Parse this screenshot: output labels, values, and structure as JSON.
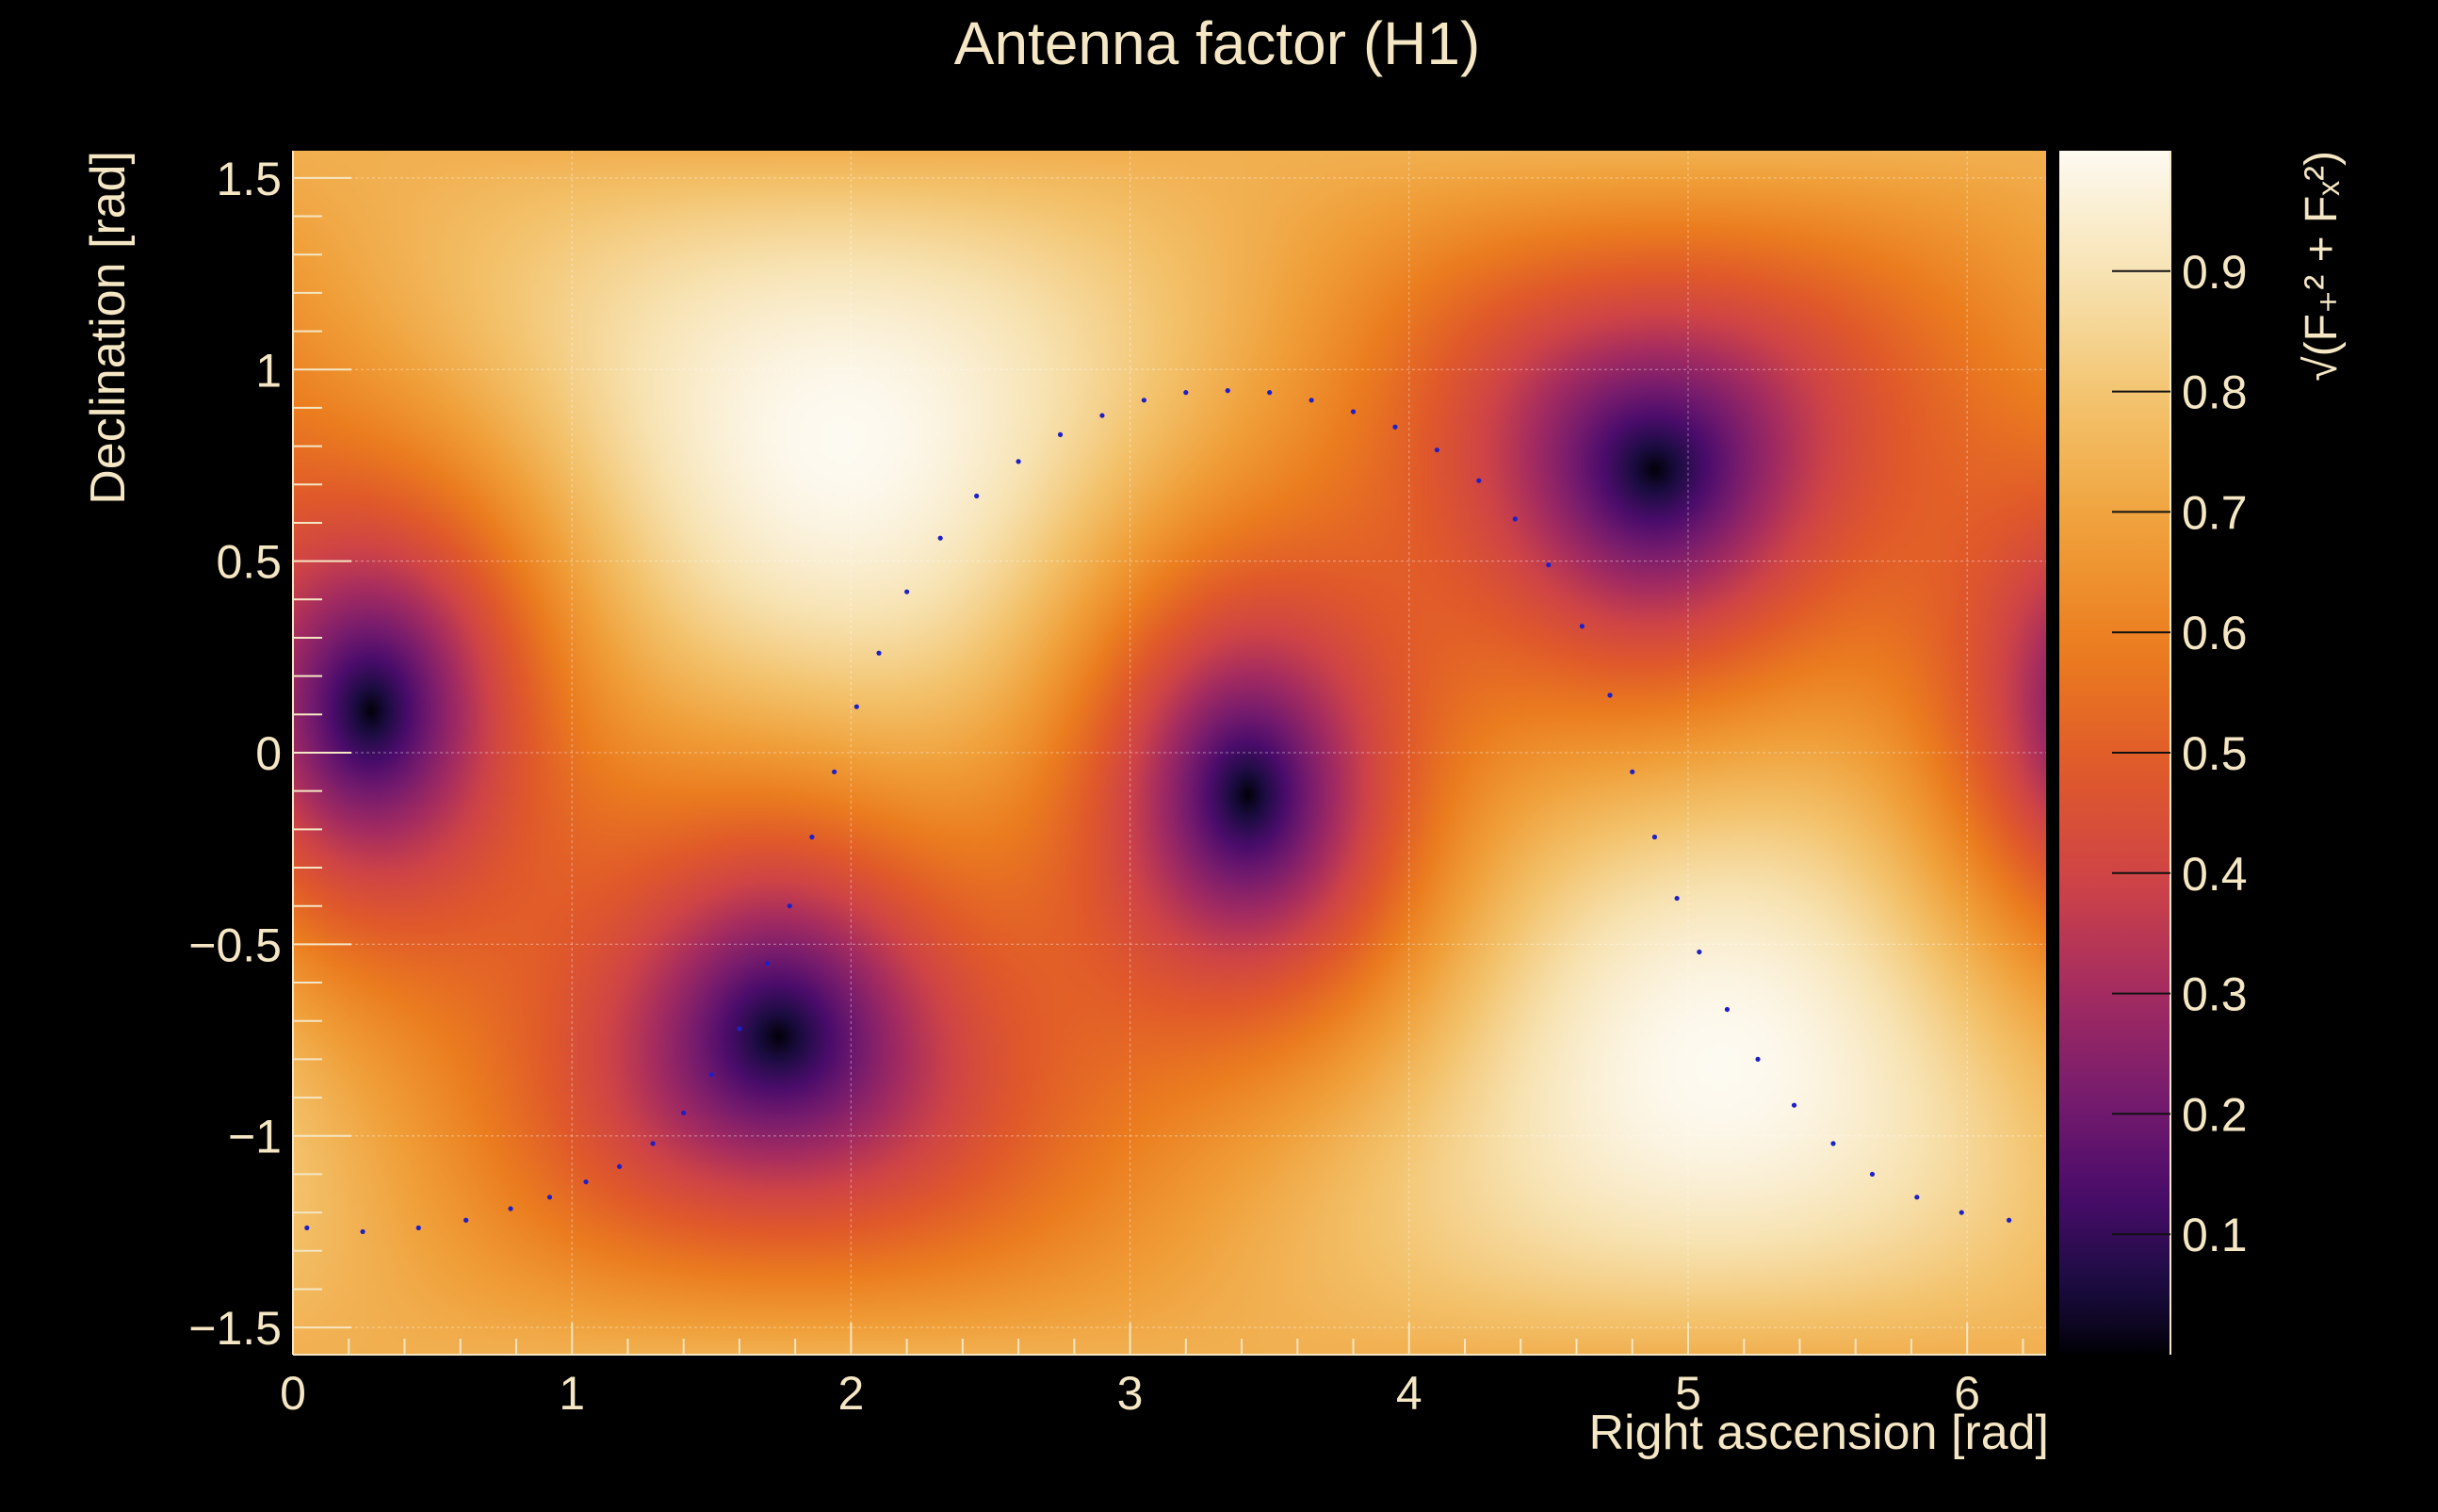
{
  "chart_data": {
    "type": "heatmap",
    "title": "Antenna factor (H1)",
    "xlabel": "Right ascension [rad]",
    "ylabel": "Declination [rad]",
    "zlabel": "√(F₊² + Fₓ²)",
    "xlim": [
      0,
      6.283
    ],
    "ylim": [
      -1.571,
      1.571
    ],
    "zlim": [
      0,
      1
    ],
    "xticks": [
      {
        "v": 0,
        "label": "0"
      },
      {
        "v": 1,
        "label": "1"
      },
      {
        "v": 2,
        "label": "2"
      },
      {
        "v": 3,
        "label": "3"
      },
      {
        "v": 4,
        "label": "4"
      },
      {
        "v": 5,
        "label": "5"
      },
      {
        "v": 6,
        "label": "6"
      }
    ],
    "yticks": [
      {
        "v": 1.5,
        "label": "1.5"
      },
      {
        "v": 1,
        "label": "1"
      },
      {
        "v": 0.5,
        "label": "0.5"
      },
      {
        "v": 0,
        "label": "0"
      },
      {
        "v": -0.5,
        "label": "−0.5"
      },
      {
        "v": -1,
        "label": "−1"
      },
      {
        "v": -1.5,
        "label": "−1.5"
      }
    ],
    "zticks": [
      {
        "v": 0.1,
        "label": "0.1"
      },
      {
        "v": 0.2,
        "label": "0.2"
      },
      {
        "v": 0.3,
        "label": "0.3"
      },
      {
        "v": 0.4,
        "label": "0.4"
      },
      {
        "v": 0.5,
        "label": "0.5"
      },
      {
        "v": 0.6,
        "label": "0.6"
      },
      {
        "v": 0.7,
        "label": "0.7"
      },
      {
        "v": 0.8,
        "label": "0.8"
      },
      {
        "v": 0.9,
        "label": "0.9"
      }
    ],
    "grid": true,
    "colormap": [
      "#000004",
      "#1b0c41",
      "#4a0c6b",
      "#781c6d",
      "#a52c60",
      "#cf4446",
      "#e05a2a",
      "#eb7d1f",
      "#f0a03a",
      "#f3c26b",
      "#f7e2b0",
      "#fdfaf1"
    ],
    "maxima": [
      {
        "ra": 1.97,
        "dec": 0.82,
        "value": 1.0
      },
      {
        "ra": 5.07,
        "dec": -0.82,
        "value": 1.0
      }
    ],
    "minima": [
      {
        "ra": 0.28,
        "dec": 0.11,
        "value": 0.0
      },
      {
        "ra": 1.74,
        "dec": -0.74,
        "value": 0.0
      },
      {
        "ra": 3.43,
        "dec": -0.11,
        "value": 0.0
      },
      {
        "ra": 4.89,
        "dec": 0.74,
        "value": 0.0
      }
    ],
    "track_color": "#1f1fc8",
    "track": [
      [
        0.05,
        -1.24
      ],
      [
        0.25,
        -1.25
      ],
      [
        0.45,
        -1.24
      ],
      [
        0.62,
        -1.22
      ],
      [
        0.78,
        -1.19
      ],
      [
        0.92,
        -1.16
      ],
      [
        1.05,
        -1.12
      ],
      [
        1.17,
        -1.08
      ],
      [
        1.29,
        -1.02
      ],
      [
        1.4,
        -0.94
      ],
      [
        1.5,
        -0.84
      ],
      [
        1.6,
        -0.72
      ],
      [
        1.7,
        -0.55
      ],
      [
        1.78,
        -0.4
      ],
      [
        1.86,
        -0.22
      ],
      [
        1.94,
        -0.05
      ],
      [
        2.02,
        0.12
      ],
      [
        2.1,
        0.26
      ],
      [
        2.2,
        0.42
      ],
      [
        2.32,
        0.56
      ],
      [
        2.45,
        0.67
      ],
      [
        2.6,
        0.76
      ],
      [
        2.75,
        0.83
      ],
      [
        2.9,
        0.88
      ],
      [
        3.05,
        0.92
      ],
      [
        3.2,
        0.94
      ],
      [
        3.35,
        0.945
      ],
      [
        3.5,
        0.94
      ],
      [
        3.65,
        0.92
      ],
      [
        3.8,
        0.89
      ],
      [
        3.95,
        0.85
      ],
      [
        4.1,
        0.79
      ],
      [
        4.25,
        0.71
      ],
      [
        4.38,
        0.61
      ],
      [
        4.5,
        0.49
      ],
      [
        4.62,
        0.33
      ],
      [
        4.72,
        0.15
      ],
      [
        4.8,
        -0.05
      ],
      [
        4.88,
        -0.22
      ],
      [
        4.96,
        -0.38
      ],
      [
        5.04,
        -0.52
      ],
      [
        5.14,
        -0.67
      ],
      [
        5.25,
        -0.8
      ],
      [
        5.38,
        -0.92
      ],
      [
        5.52,
        -1.02
      ],
      [
        5.66,
        -1.1
      ],
      [
        5.82,
        -1.16
      ],
      [
        5.98,
        -1.2
      ],
      [
        6.15,
        -1.22
      ]
    ]
  }
}
